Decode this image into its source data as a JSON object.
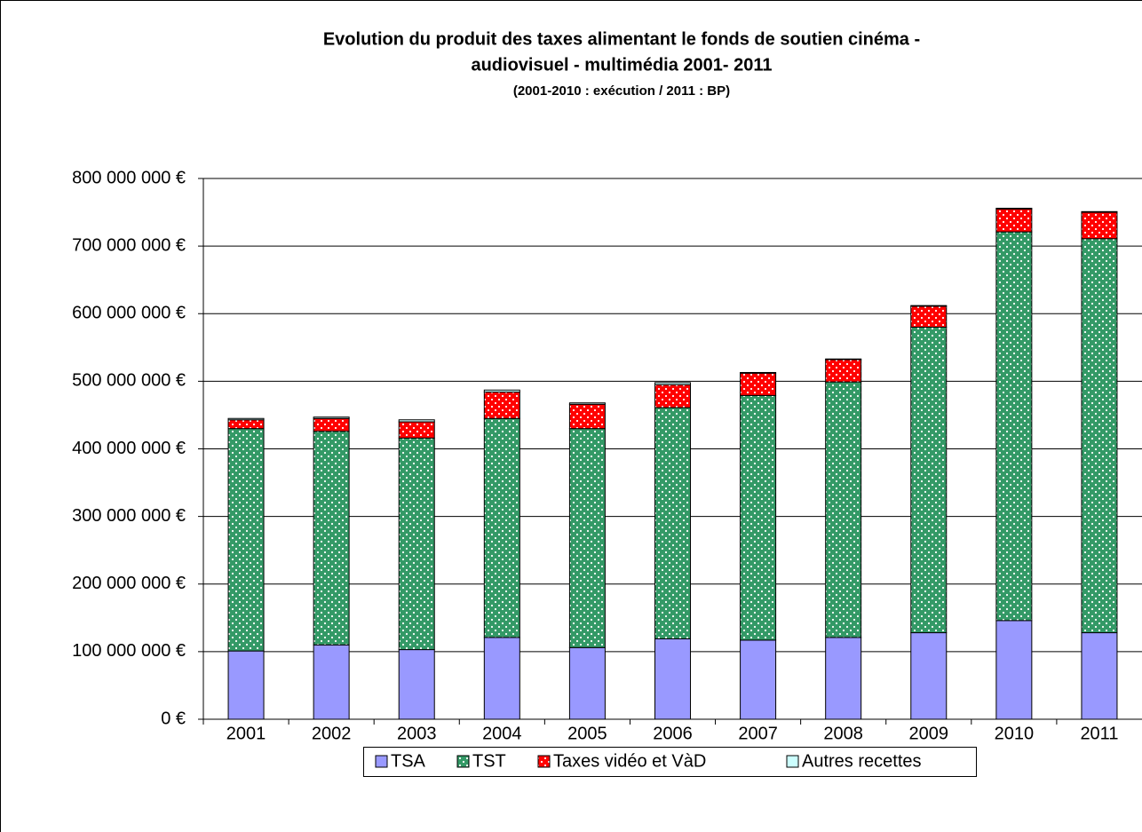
{
  "chart_data": {
    "type": "stacked_bar",
    "title": "Evolution du produit des taxes alimentant le fonds de soutien cinéma -",
    "title_line2": "audiovisuel - multimédia 2001- 2011",
    "subtitle": "(2001-2010 : exécution / 2011 : BP)",
    "categories": [
      "2001",
      "2002",
      "2003",
      "2004",
      "2005",
      "2006",
      "2007",
      "2008",
      "2009",
      "2010",
      "2011"
    ],
    "series": [
      {
        "name": "TSA",
        "color": "#9999ff",
        "values": [
          101000000,
          110000000,
          103000000,
          121000000,
          106000000,
          119000000,
          117000000,
          121000000,
          128000000,
          146000000,
          128000000
        ]
      },
      {
        "name": "TST",
        "color": "#339966",
        "values": [
          329000000,
          316000000,
          313000000,
          324000000,
          324000000,
          342000000,
          362000000,
          378000000,
          452000000,
          575000000,
          583000000
        ]
      },
      {
        "name": "Taxes vidéo et VàD",
        "color": "#ff0000",
        "values": [
          13000000,
          19000000,
          24000000,
          39000000,
          36000000,
          34000000,
          33000000,
          33000000,
          31000000,
          34000000,
          39000000
        ]
      },
      {
        "name": "Autres recettes",
        "color": "#ccffff",
        "values": [
          2000000,
          2000000,
          3000000,
          3000000,
          2000000,
          3000000,
          1000000,
          1000000,
          1000000,
          1000000,
          1000000
        ]
      }
    ],
    "ylim": [
      0,
      800000000
    ],
    "yticks": [
      {
        "value": 0,
        "label": "0 €"
      },
      {
        "value": 100000000,
        "label": "100 000 000 €"
      },
      {
        "value": 200000000,
        "label": "200 000 000 €"
      },
      {
        "value": 300000000,
        "label": "300 000 000 €"
      },
      {
        "value": 400000000,
        "label": "400 000 000 €"
      },
      {
        "value": 500000000,
        "label": "500 000 000 €"
      },
      {
        "value": 600000000,
        "label": "600 000 000 €"
      },
      {
        "value": 700000000,
        "label": "700 000 000 €"
      },
      {
        "value": 800000000,
        "label": "800 000 000 €"
      }
    ],
    "grid": true,
    "legend": "bottom"
  }
}
